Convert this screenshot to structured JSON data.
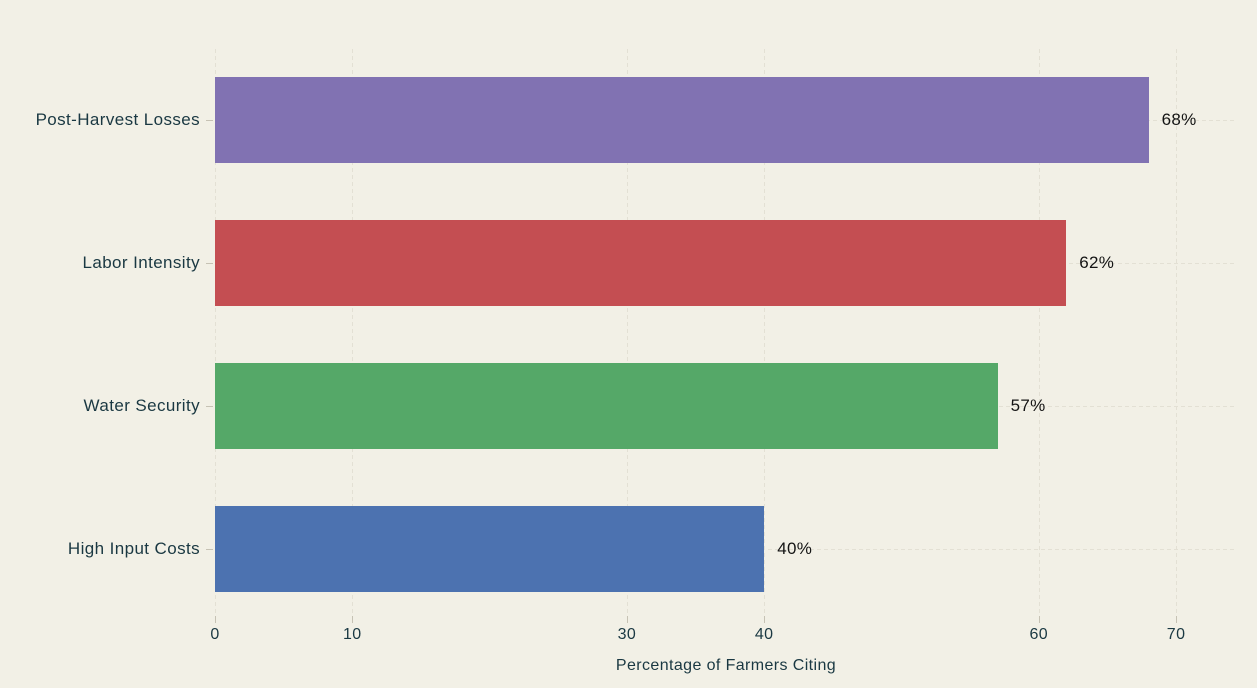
{
  "chart_data": {
    "type": "bar",
    "orientation": "horizontal",
    "title": "",
    "categories": [
      "Post-Harvest Losses",
      "Labor Intensity",
      "Water Security",
      "High Input Costs"
    ],
    "values": [
      68,
      62,
      57,
      40
    ],
    "value_labels": [
      "68%",
      "62%",
      "57%",
      "40%"
    ],
    "bar_colors": [
      "#8172b2",
      "#c44e52",
      "#55a868",
      "#4c72b0"
    ],
    "xlabel": "Percentage of Farmers Citing",
    "ylabel": "",
    "x_ticks": [
      0,
      10,
      30,
      40,
      60,
      70
    ],
    "xlim": [
      0,
      74.5
    ],
    "grid": "faint dashed gridlines on both axes",
    "legend": "none",
    "colors": {
      "background": "#f2f0e6",
      "gridline": "#e3e0d4",
      "axis_text": "#1a3842",
      "value_text": "#141414"
    }
  }
}
